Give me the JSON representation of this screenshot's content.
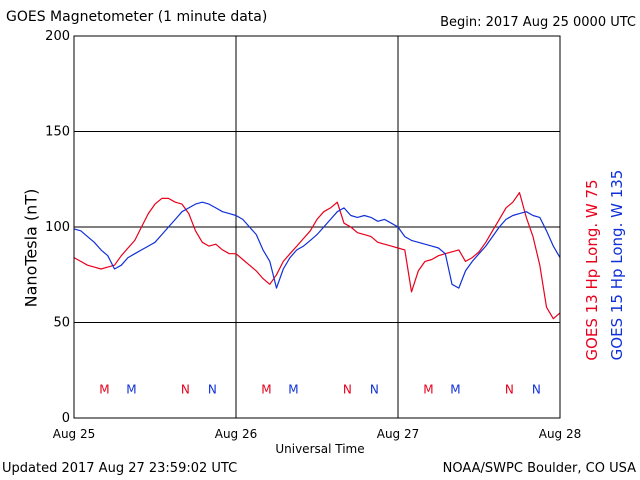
{
  "header": {
    "title": "GOES Magnetometer (1 minute data)",
    "begin": "Begin:  2017 Aug 25 0000 UTC"
  },
  "footer": {
    "updated": "Updated 2017 Aug 27 23:59:02 UTC",
    "credit": "NOAA/SWPC Boulder, CO USA"
  },
  "colors": {
    "goes13": "#e8001c",
    "goes15": "#1030d8",
    "grid": "#000000"
  },
  "chart_data": {
    "type": "line",
    "xlabel": "Universal Time",
    "ylabel": "NanoTesla (nT)",
    "xlim": [
      0,
      72
    ],
    "x_unit": "hours since 2017 Aug 25 0000 UTC",
    "ylim": [
      0,
      200
    ],
    "yticks": [
      0,
      50,
      100,
      150,
      200
    ],
    "xticks": [
      {
        "x": 0,
        "label": "Aug 25"
      },
      {
        "x": 24,
        "label": "Aug 26"
      },
      {
        "x": 48,
        "label": "Aug 27"
      },
      {
        "x": 72,
        "label": "Aug 28"
      }
    ],
    "grid": true,
    "series": [
      {
        "name": "GOES 13 Hp  Long. W 75",
        "color": "#e8001c",
        "x": [
          0,
          1,
          2,
          3,
          4,
          5,
          6,
          7,
          8,
          9,
          10,
          11,
          12,
          13,
          14,
          15,
          16,
          17,
          18,
          19,
          20,
          21,
          22,
          23,
          24,
          25,
          26,
          27,
          28,
          29,
          30,
          31,
          32,
          33,
          34,
          35,
          36,
          37,
          38,
          39,
          40,
          41,
          42,
          43,
          44,
          45,
          46,
          47,
          48,
          49,
          50,
          51,
          52,
          53,
          54,
          55,
          56,
          57,
          58,
          59,
          60,
          61,
          62,
          63,
          64,
          65,
          66,
          67,
          68,
          69,
          70,
          71,
          72
        ],
        "values": [
          84,
          82,
          80,
          79,
          78,
          79,
          80,
          85,
          89,
          93,
          100,
          107,
          112,
          115,
          115,
          113,
          112,
          107,
          98,
          92,
          90,
          91,
          88,
          86,
          86,
          83,
          80,
          77,
          73,
          70,
          75,
          82,
          86,
          90,
          94,
          98,
          104,
          108,
          110,
          113,
          102,
          100,
          97,
          96,
          95,
          92,
          91,
          90,
          89,
          88,
          66,
          77,
          82,
          83,
          85,
          86,
          87,
          88,
          82,
          84,
          87,
          92,
          98,
          104,
          110,
          113,
          118,
          105,
          95,
          80,
          58,
          52,
          55
        ]
      },
      {
        "name": "GOES 15 Hp  Long. W 135",
        "color": "#1030d8",
        "x": [
          0,
          1,
          2,
          3,
          4,
          5,
          6,
          7,
          8,
          9,
          10,
          11,
          12,
          13,
          14,
          15,
          16,
          17,
          18,
          19,
          20,
          21,
          22,
          23,
          24,
          25,
          26,
          27,
          28,
          29,
          30,
          31,
          32,
          33,
          34,
          35,
          36,
          37,
          38,
          39,
          40,
          41,
          42,
          43,
          44,
          45,
          46,
          47,
          48,
          49,
          50,
          51,
          52,
          53,
          54,
          55,
          56,
          57,
          58,
          59,
          60,
          61,
          62,
          63,
          64,
          65,
          66,
          67,
          68,
          69,
          70,
          71,
          72
        ],
        "values": [
          99,
          98,
          95,
          92,
          88,
          85,
          78,
          80,
          84,
          86,
          88,
          90,
          92,
          96,
          100,
          104,
          108,
          110,
          112,
          113,
          112,
          110,
          108,
          107,
          106,
          104,
          100,
          96,
          88,
          82,
          68,
          78,
          84,
          88,
          90,
          93,
          96,
          100,
          104,
          108,
          110,
          106,
          105,
          106,
          105,
          103,
          104,
          102,
          100,
          95,
          93,
          92,
          91,
          90,
          89,
          86,
          70,
          68,
          77,
          82,
          86,
          90,
          95,
          100,
          104,
          106,
          107,
          108,
          106,
          105,
          98,
          90,
          84
        ]
      }
    ],
    "markers": [
      {
        "text": "M",
        "x": 4.5,
        "series": 0
      },
      {
        "text": "M",
        "x": 8.5,
        "series": 1
      },
      {
        "text": "N",
        "x": 16.5,
        "series": 0
      },
      {
        "text": "N",
        "x": 20.5,
        "series": 1
      },
      {
        "text": "M",
        "x": 28.5,
        "series": 0
      },
      {
        "text": "M",
        "x": 32.5,
        "series": 1
      },
      {
        "text": "N",
        "x": 40.5,
        "series": 0
      },
      {
        "text": "N",
        "x": 44.5,
        "series": 1
      },
      {
        "text": "M",
        "x": 52.5,
        "series": 0
      },
      {
        "text": "M",
        "x": 56.5,
        "series": 1
      },
      {
        "text": "N",
        "x": 64.5,
        "series": 0
      },
      {
        "text": "N",
        "x": 68.5,
        "series": 1
      }
    ]
  }
}
